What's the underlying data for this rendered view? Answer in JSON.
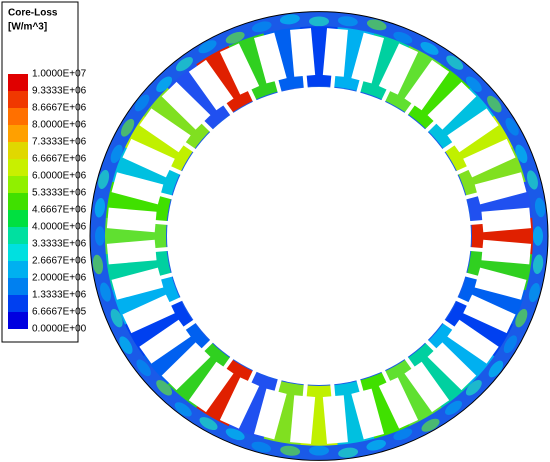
{
  "legend": {
    "title": "Core-Loss",
    "unit": "[W/m^3]",
    "labels": [
      "1.0000E+07",
      "9.3333E+06",
      "8.6667E+06",
      "8.0000E+06",
      "7.3333E+06",
      "6.6667E+06",
      "6.0000E+06",
      "5.3333E+06",
      "4.6667E+06",
      "4.0000E+06",
      "3.3333E+06",
      "2.6667E+06",
      "2.0000E+06",
      "1.3333E+06",
      "6.6667E+05",
      "0.0000E+00"
    ],
    "colors": [
      "#e00000",
      "#f03800",
      "#ff7000",
      "#ffa000",
      "#e0d800",
      "#c8f000",
      "#90f000",
      "#40e000",
      "#00e040",
      "#00e0a0",
      "#00e0e0",
      "#00b0f0",
      "#0080f0",
      "#0040f0",
      "#0000e0"
    ]
  }
}
